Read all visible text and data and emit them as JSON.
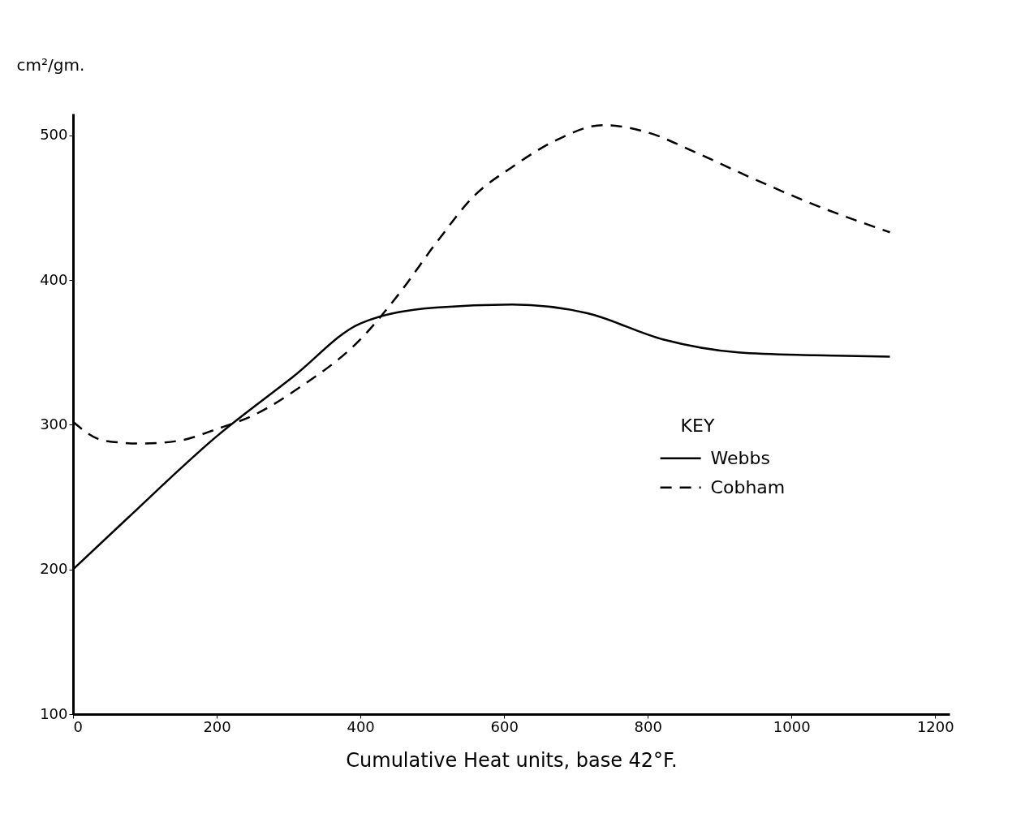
{
  "chart_data": {
    "type": "line",
    "xlabel": "Cumulative Heat units, base 42°F.",
    "ylabel": "cm²/gm.",
    "legend_title": "KEY",
    "legend": "right",
    "grid": false,
    "marker": "none",
    "xlim": [
      0,
      1220
    ],
    "ylim": [
      100,
      515
    ],
    "xticks": [
      0,
      200,
      400,
      600,
      800,
      1000,
      1200
    ],
    "yticks": [
      100,
      200,
      300,
      400,
      500
    ],
    "series": [
      {
        "name": "Webbs",
        "color": "#000000",
        "line_style": "solid",
        "x": [
          0,
          75,
          200,
          306,
          400,
          505,
          611,
          716,
          821,
          926,
          1032,
          1137
        ],
        "values": [
          200,
          235,
          292,
          333,
          370,
          381,
          383,
          377,
          359,
          350,
          348,
          347
        ]
      },
      {
        "name": "Cobham",
        "color": "#000000",
        "line_style": "dashed",
        "x": [
          0,
          43,
          96,
          148,
          200,
          253,
          316,
          400,
          453,
          506,
          558,
          611,
          674,
          737,
          800,
          863,
          947,
          1032,
          1137
        ],
        "values": [
          302,
          289,
          287,
          289,
          297,
          307,
          326,
          359,
          390,
          426,
          458,
          478,
          497,
          507,
          502,
          489,
          470,
          452,
          433
        ]
      }
    ]
  }
}
